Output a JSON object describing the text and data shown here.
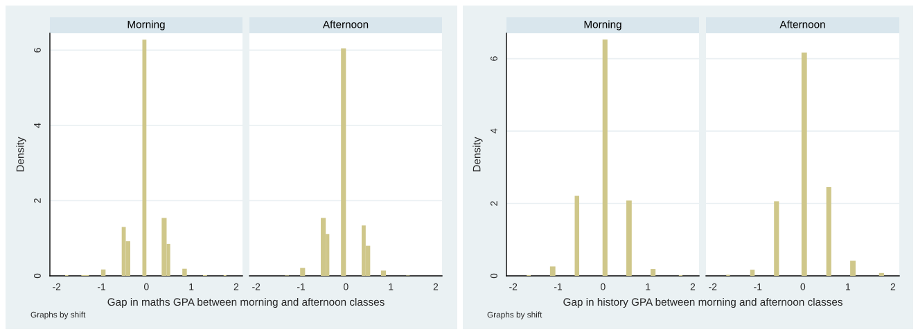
{
  "chart_data": [
    {
      "type": "histogram",
      "title": "Morning",
      "xlabel": "Gap in maths GPA between morning and afternoon classes",
      "ylabel": "Density",
      "annotations": [
        "Graphs by shift"
      ],
      "color": "#cfc78a",
      "bins": [
        -1.81,
        -1.74,
        -1.45,
        -1.28,
        -1.01,
        -0.91,
        -0.55,
        -0.46,
        -0.36,
        -0.09,
        0.0,
        0.34,
        0.45,
        0.53,
        0.8,
        0.9,
        1.26,
        1.35,
        1.72,
        1.78
      ],
      "values": [
        0.02,
        0,
        0.02,
        0,
        0.17,
        0,
        1.3,
        0.92,
        0,
        6.28,
        0,
        1.54,
        0.85,
        0,
        0.19,
        0,
        0.02,
        0,
        0.02
      ],
      "xlim": [
        -2.15,
        2.14
      ],
      "ylim": [
        0,
        6.45
      ],
      "xticks": [
        -2,
        -1,
        0,
        1,
        2
      ],
      "yticks": [
        0,
        2,
        4,
        6
      ],
      "grid": "y"
    },
    {
      "type": "histogram",
      "title": "Afternoon",
      "color": "#cfc78a",
      "bins": [
        -1.36,
        -1.27,
        -1.02,
        -0.91,
        -0.56,
        -0.45,
        -0.37,
        -0.11,
        0.0,
        0.35,
        0.44,
        0.54,
        0.78,
        0.89,
        1.34,
        1.42
      ],
      "values": [
        0.01,
        0,
        0.21,
        0,
        1.54,
        1.11,
        0,
        6.05,
        0,
        1.34,
        0.8,
        0,
        0.14,
        0,
        0.01
      ],
      "xlim": [
        -2.15,
        2.14
      ],
      "ylim": [
        0,
        6.45
      ],
      "xticks": [
        -2,
        -1,
        0,
        1,
        2
      ],
      "yticks": [
        0,
        2,
        4,
        6
      ],
      "grid": "y",
      "tick_labels": "x"
    },
    {
      "type": "histogram",
      "title": "Morning",
      "xlabel": "Gap in history GPA between morning and afternoon classes",
      "ylabel": "Density",
      "annotations": [
        "Graphs by shift"
      ],
      "color": "#cfc78a",
      "bins": [
        -1.7,
        -1.61,
        -1.18,
        -1.06,
        -0.63,
        -0.53,
        -0.01,
        0.1,
        0.52,
        0.64,
        1.06,
        1.17,
        1.69,
        1.77
      ],
      "values": [
        0.02,
        0,
        0.26,
        0,
        2.21,
        0,
        6.53,
        0,
        2.08,
        0,
        0.19,
        0,
        0.02
      ],
      "xlim": [
        -2.15,
        2.14
      ],
      "ylim": [
        0,
        6.7
      ],
      "xticks": [
        -2,
        -1,
        0,
        1,
        2
      ],
      "yticks": [
        0,
        2,
        4,
        6
      ],
      "grid": "y"
    },
    {
      "type": "histogram",
      "title": "Afternoon",
      "color": "#cfc78a",
      "bins": [
        -1.7,
        -1.62,
        -1.17,
        -1.07,
        -0.64,
        -0.53,
        -0.03,
        0.09,
        0.52,
        0.63,
        1.05,
        1.17,
        1.69,
        1.8
      ],
      "values": [
        0.03,
        0,
        0.17,
        0,
        2.06,
        0,
        6.17,
        0,
        2.45,
        0,
        0.42,
        0,
        0.08
      ],
      "xlim": [
        -2.15,
        2.14
      ],
      "ylim": [
        0,
        6.7
      ],
      "xticks": [
        -2,
        -1,
        0,
        1,
        2
      ],
      "yticks": [
        0,
        2,
        4,
        6
      ],
      "grid": "y",
      "tick_labels": "x"
    }
  ]
}
